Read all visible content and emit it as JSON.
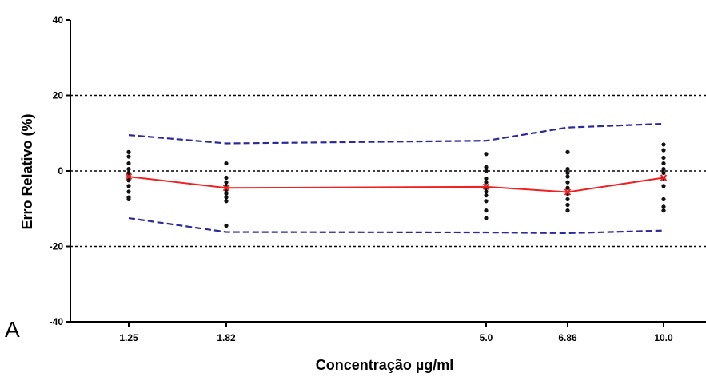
{
  "chart_data": {
    "type": "scatter",
    "panel_label": "A",
    "xlabel": "Concentração µg/ml",
    "ylabel": "Erro Relativo (%)",
    "categories": [
      "1.25",
      "1.82",
      "5.0",
      "6.86",
      "10.0"
    ],
    "ylim": [
      -40,
      40
    ],
    "yticks": [
      40,
      20,
      0,
      -20,
      -40
    ],
    "ytick_labels": [
      "40",
      "20",
      "0",
      "-20",
      "-40"
    ],
    "reference_lines": [
      20,
      0,
      -20
    ],
    "points": [
      [
        5.0,
        3.8,
        2.0,
        0.5,
        -0.5,
        -1.5,
        -2.5,
        -4.0,
        -5.5,
        -7.0,
        -7.5
      ],
      [
        2.0,
        -1.8,
        -3.0,
        -4.0,
        -5.0,
        -6.0,
        -7.0,
        -8.0,
        -14.5
      ],
      [
        4.5,
        1.0,
        0.0,
        -2.0,
        -3.0,
        -4.5,
        -5.5,
        -6.5,
        -8.0,
        -10.5,
        -12.5
      ],
      [
        5.0,
        0.5,
        -0.5,
        -1.5,
        -3.0,
        -4.5,
        -6.0,
        -7.5,
        -9.0,
        -10.5
      ],
      [
        7.0,
        5.5,
        3.5,
        2.0,
        0.5,
        -0.5,
        -2.0,
        -4.0,
        -7.5,
        -9.5,
        -10.5
      ]
    ],
    "series": [
      {
        "values": [
          -1.5,
          -4.5,
          -4.2,
          -5.6,
          -1.8
        ],
        "color": "#ee2222",
        "style": "solid",
        "marker": "x"
      },
      {
        "values": [
          9.5,
          7.3,
          8.0,
          11.5,
          12.5
        ],
        "color": "#2a2a9a",
        "style": "dashed"
      },
      {
        "values": [
          -12.5,
          -16.2,
          -16.3,
          -16.5,
          -15.8
        ],
        "color": "#2a2a9a",
        "style": "dashed"
      }
    ],
    "colors": {
      "points": "#111111",
      "reference": "#000000"
    }
  }
}
